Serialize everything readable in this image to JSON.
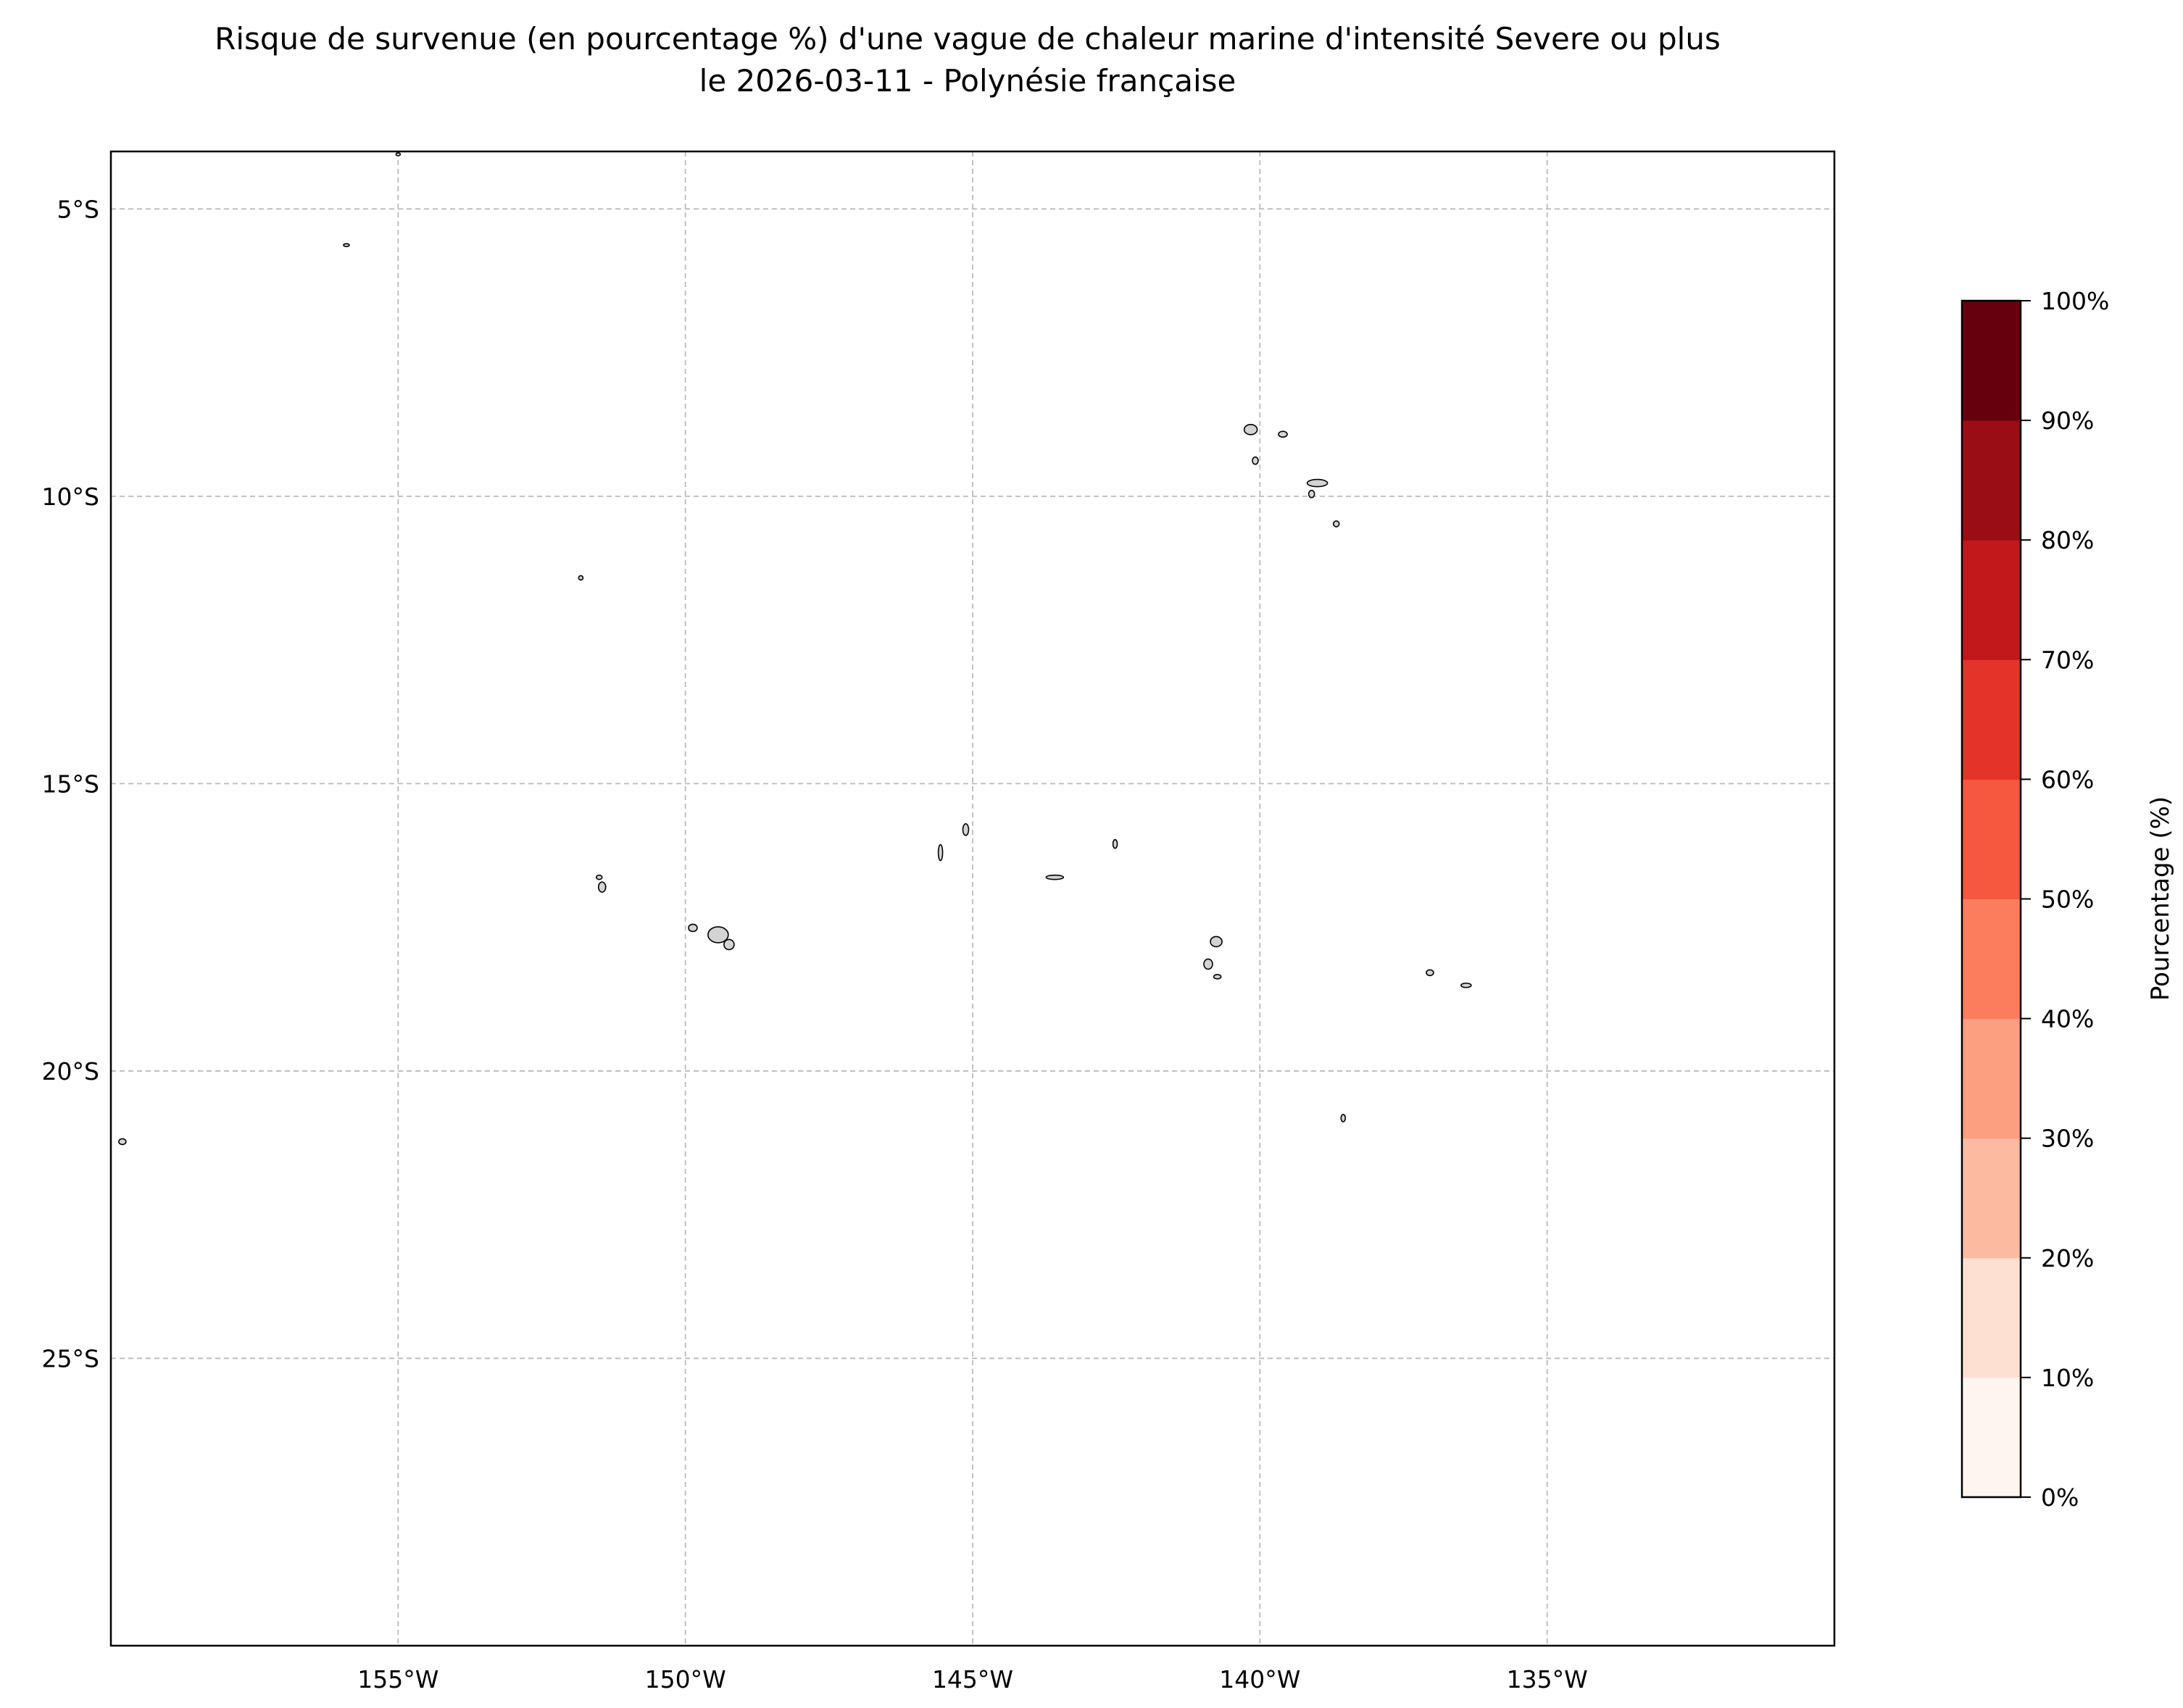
{
  "chart_data": {
    "type": "map",
    "title_line1": "Risque de survenue (en pourcentage %) d'une vague de chaleur marine d'intensité Severe ou plus",
    "title_line2": "le 2026-03-11 - Polynésie française",
    "lon_range": [
      -160,
      -130
    ],
    "lat_range": [
      -30,
      -4
    ],
    "grid": true,
    "x_ticks": [
      {
        "value": -155,
        "label": "155°W"
      },
      {
        "value": -150,
        "label": "150°W"
      },
      {
        "value": -145,
        "label": "145°W"
      },
      {
        "value": -140,
        "label": "140°W"
      },
      {
        "value": -135,
        "label": "135°W"
      }
    ],
    "y_ticks": [
      {
        "value": -5,
        "label": "5°S"
      },
      {
        "value": -10,
        "label": "10°S"
      },
      {
        "value": -15,
        "label": "15°S"
      },
      {
        "value": -20,
        "label": "20°S"
      },
      {
        "value": -25,
        "label": "25°S"
      }
    ],
    "islands": [
      {
        "lon": -155.0,
        "lat": -4.05
      },
      {
        "lon": -155.9,
        "lat": -5.63
      },
      {
        "lon": -151.82,
        "lat": -11.42
      },
      {
        "lon": -140.16,
        "lat": -8.84
      },
      {
        "lon": -139.6,
        "lat": -8.92
      },
      {
        "lon": -140.08,
        "lat": -9.38
      },
      {
        "lon": -139.0,
        "lat": -9.77
      },
      {
        "lon": -139.1,
        "lat": -9.96
      },
      {
        "lon": -138.67,
        "lat": -10.48
      },
      {
        "lon": -151.5,
        "lat": -16.63
      },
      {
        "lon": -151.45,
        "lat": -16.8
      },
      {
        "lon": -149.87,
        "lat": -17.51
      },
      {
        "lon": -149.43,
        "lat": -17.63
      },
      {
        "lon": -149.24,
        "lat": -17.8
      },
      {
        "lon": -145.56,
        "lat": -16.2
      },
      {
        "lon": -145.12,
        "lat": -15.8
      },
      {
        "lon": -143.57,
        "lat": -16.63
      },
      {
        "lon": -142.52,
        "lat": -16.05
      },
      {
        "lon": -140.76,
        "lat": -17.75
      },
      {
        "lon": -140.9,
        "lat": -18.14
      },
      {
        "lon": -140.74,
        "lat": -18.36
      },
      {
        "lon": -137.04,
        "lat": -18.29
      },
      {
        "lon": -136.41,
        "lat": -18.51
      },
      {
        "lon": -138.55,
        "lat": -20.82
      },
      {
        "lon": -159.8,
        "lat": -21.23
      }
    ],
    "land_color": "#d3d3d3",
    "colorbar": {
      "label": "Pourcentage (%)",
      "levels": [
        0,
        10,
        20,
        30,
        40,
        50,
        60,
        70,
        80,
        90,
        100
      ],
      "tick_labels": [
        "0%",
        "10%",
        "20%",
        "30%",
        "40%",
        "50%",
        "60%",
        "70%",
        "80%",
        "90%",
        "100%"
      ],
      "colors": [
        "#fff5f0",
        "#fee0d2",
        "#fcbba1",
        "#fc9e80",
        "#fb7d5d",
        "#f5573f",
        "#e43328",
        "#c2181c",
        "#9b0d14",
        "#67000d"
      ]
    }
  }
}
